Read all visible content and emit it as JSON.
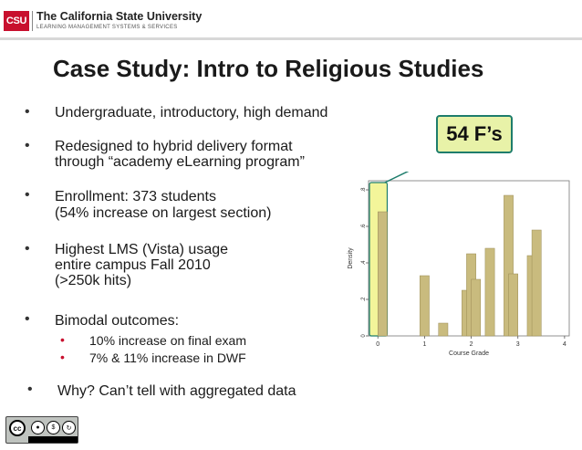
{
  "header": {
    "logo_text": "CSU",
    "org_name": "The California State University",
    "org_subtitle": "LEARNING MANAGEMENT SYSTEMS & SERVICES"
  },
  "slide": {
    "title": "Case Study: Intro to Religious Studies",
    "bullet_marker": "•",
    "sub_marker": "•",
    "bullets": [
      {
        "lines": [
          "Undergraduate, introductory, high demand"
        ]
      },
      {
        "lines": [
          "Redesigned to hybrid delivery format",
          " through “academy eLearning program”"
        ]
      },
      {
        "lines": [
          "Enrollment: 373 students",
          "(54% increase on largest section)"
        ]
      },
      {
        "lines": [
          "Highest LMS (Vista) usage",
          "entire campus Fall 2010",
          "(>250k hits)"
        ]
      },
      {
        "lines": [
          "Bimodal outcomes:"
        ]
      },
      {
        "lines": [
          "Why?  Can’t tell with aggregated data"
        ]
      }
    ],
    "sub_bullets": [
      "10% increase on final exam",
      "7% & 11% increase in DWF"
    ],
    "callout": "54 F’s",
    "license": "BY NC SA"
  },
  "colors": {
    "accent_red": "#c8102e",
    "bar_fill": "#c9bb7e",
    "bar_stroke": "#9a8c55",
    "highlight_fill": "#f3f59a",
    "callout_border": "#1e7d6c"
  },
  "chart_data": {
    "type": "bar",
    "xlabel": "Course Grade",
    "ylabel": "Density",
    "xlim": [
      -0.2,
      4.1
    ],
    "ylim": [
      0,
      0.85
    ],
    "xticks": [
      0,
      1,
      2,
      3,
      4
    ],
    "yticks": [
      0,
      0.2,
      0.4,
      0.6,
      0.8
    ],
    "ytick_labels": [
      "0",
      ".2",
      ".4",
      ".6",
      ".8"
    ],
    "bar_width": 0.2,
    "bars": [
      {
        "x": 0.0,
        "value": 0.68
      },
      {
        "x": 0.9,
        "value": 0.33
      },
      {
        "x": 1.3,
        "value": 0.07
      },
      {
        "x": 1.8,
        "value": 0.25
      },
      {
        "x": 1.9,
        "value": 0.45
      },
      {
        "x": 2.0,
        "value": 0.31
      },
      {
        "x": 2.3,
        "value": 0.48
      },
      {
        "x": 2.7,
        "value": 0.77
      },
      {
        "x": 2.8,
        "value": 0.34
      },
      {
        "x": 3.2,
        "value": 0.44
      },
      {
        "x": 3.3,
        "value": 0.58
      }
    ]
  }
}
